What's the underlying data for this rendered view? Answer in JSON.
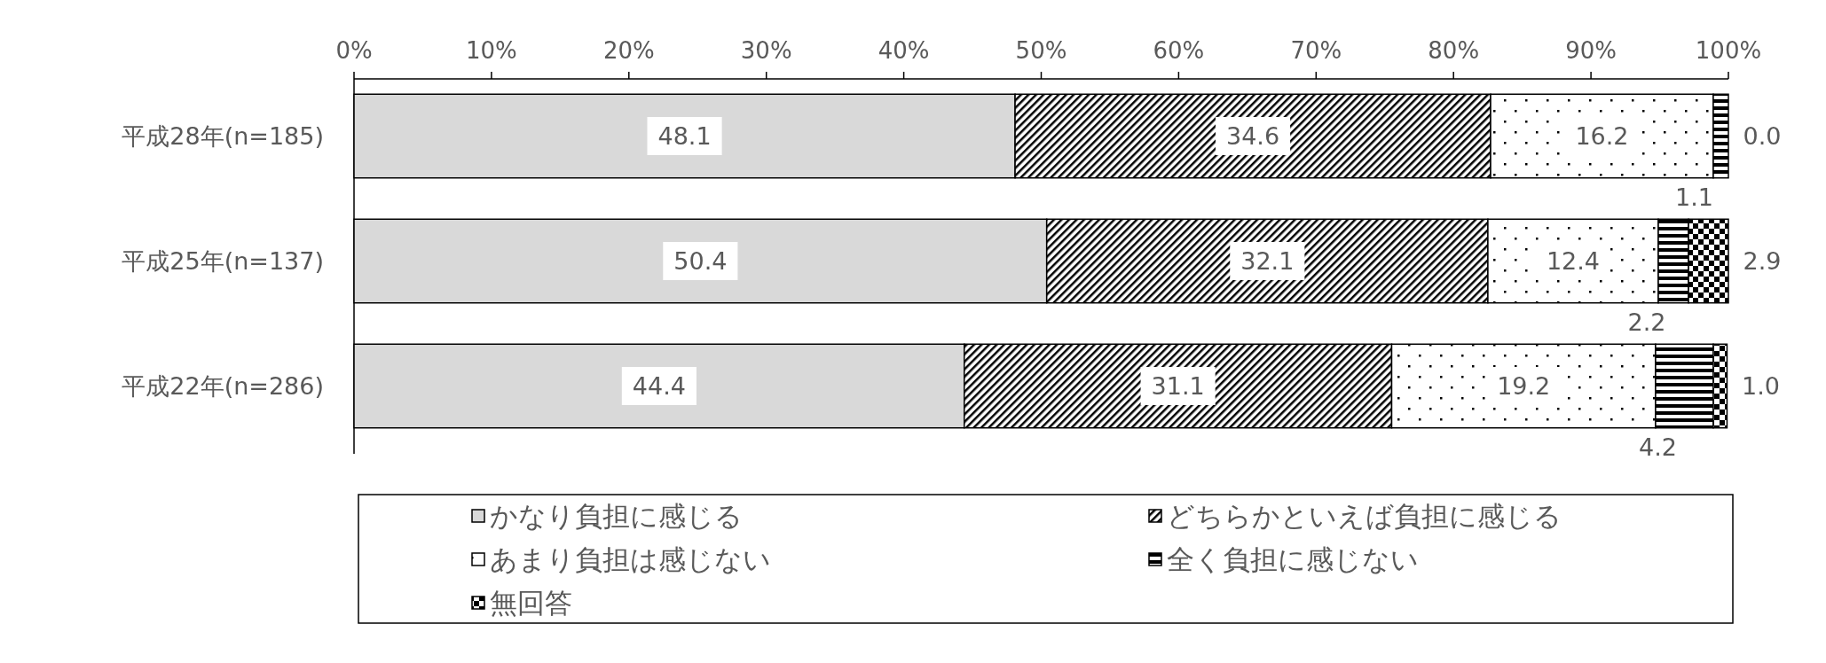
{
  "chart_data": {
    "type": "bar",
    "orientation": "horizontal",
    "stacked": true,
    "legend": "bottom",
    "categories": [
      "平成28年(n=185)",
      "平成25年(n=137)",
      "平成22年(n=286)"
    ],
    "xlim": [
      0,
      100
    ],
    "xticks": [
      {
        "value": 0,
        "label": "0%"
      },
      {
        "value": 10,
        "label": "10%"
      },
      {
        "value": 20,
        "label": "20%"
      },
      {
        "value": 30,
        "label": "30%"
      },
      {
        "value": 40,
        "label": "40%"
      },
      {
        "value": 50,
        "label": "50%"
      },
      {
        "value": 60,
        "label": "60%"
      },
      {
        "value": 70,
        "label": "70%"
      },
      {
        "value": 80,
        "label": "80%"
      },
      {
        "value": 90,
        "label": "90%"
      },
      {
        "value": 100,
        "label": "100%"
      }
    ],
    "series": [
      {
        "name": "かなり負担に感じる",
        "color": "#d9d9d9",
        "values": [
          48.1,
          50.4,
          44.4
        ],
        "value_labels": [
          "48.1",
          "50.4",
          "44.4"
        ]
      },
      {
        "name": "どちらかといえば負担に感じる",
        "color": "#000000",
        "values": [
          34.6,
          32.1,
          31.1
        ],
        "value_labels": [
          "34.6",
          "32.1",
          "31.1"
        ]
      },
      {
        "name": "あまり負担は感じない",
        "color": "#000000",
        "values": [
          16.2,
          12.4,
          19.2
        ],
        "value_labels": [
          "16.2",
          "12.4",
          "19.2"
        ]
      },
      {
        "name": "全く負担に感じない",
        "color": "#000000",
        "values": [
          1.1,
          2.2,
          4.2
        ],
        "value_labels": [
          "1.1",
          "2.2",
          "4.2"
        ]
      },
      {
        "name": "無回答",
        "color": "#000000",
        "values": [
          0.0,
          2.9,
          1.0
        ],
        "value_labels": [
          "0.0",
          "2.9",
          "1.0"
        ]
      }
    ]
  }
}
